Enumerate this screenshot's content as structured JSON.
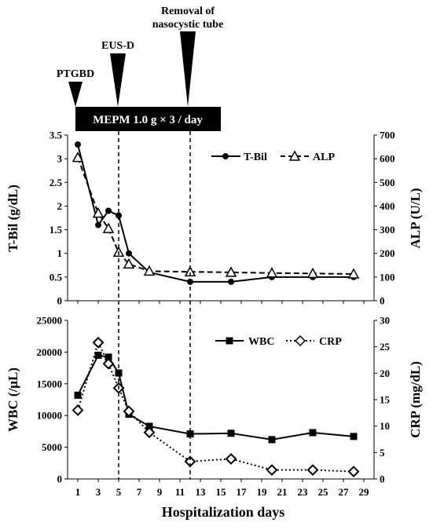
{
  "chart_data": [
    {
      "type": "line",
      "panel": "top",
      "x": [
        1,
        3,
        4,
        5,
        6,
        8,
        12,
        16,
        20,
        24,
        28
      ],
      "series": [
        {
          "name": "T-Bil",
          "axis": "left",
          "marker": "circle-filled",
          "line": "solid",
          "values": [
            3.3,
            1.6,
            1.9,
            1.8,
            1.0,
            0.6,
            0.4,
            0.4,
            0.5,
            0.5,
            0.5
          ]
        },
        {
          "name": "ALP",
          "axis": "right",
          "marker": "triangle-open",
          "line": "dashed",
          "values": [
            605,
            370,
            305,
            205,
            155,
            125,
            122,
            120,
            117,
            115,
            113
          ]
        }
      ],
      "ylabel_left": "T-Bil (g/dL)",
      "ylabel_right": "ALP (U/L)",
      "ylim_left": [
        0,
        3.5
      ],
      "ylim_right": [
        0,
        700
      ],
      "yticks_left": [
        "0",
        "0.5",
        "1",
        "1.5",
        "2",
        "2.5",
        "3",
        "3.5"
      ],
      "yticks_right": [
        "0",
        "100",
        "200",
        "300",
        "400",
        "500",
        "600",
        "700"
      ],
      "legend": "top-right",
      "grid": false
    },
    {
      "type": "line",
      "panel": "bottom",
      "x": [
        1,
        3,
        4,
        5,
        6,
        8,
        12,
        16,
        20,
        24,
        28
      ],
      "series": [
        {
          "name": "WBC",
          "axis": "left",
          "marker": "square-filled",
          "line": "solid",
          "values": [
            13200,
            19500,
            19200,
            16700,
            10200,
            8300,
            7100,
            7200,
            6200,
            7300,
            6700
          ]
        },
        {
          "name": "CRP",
          "axis": "right",
          "marker": "diamond-open",
          "line": "dotted",
          "values": [
            13,
            25.8,
            21.8,
            17.2,
            12.8,
            8.8,
            3.3,
            3.8,
            1.7,
            1.7,
            1.4
          ]
        }
      ],
      "ylabel_left": "WBC (/μL)",
      "ylabel_right": "CRP (mg/dL)",
      "ylim_left": [
        0,
        25000
      ],
      "ylim_right": [
        0,
        30
      ],
      "yticks_left": [
        "0",
        "5000",
        "10000",
        "15000",
        "20000",
        "25000"
      ],
      "yticks_right": [
        "0",
        "5",
        "10",
        "15",
        "20",
        "25",
        "30"
      ],
      "legend": "top-right",
      "grid": false
    }
  ],
  "xaxis": {
    "label": "Hospitalization days",
    "xlim": [
      0,
      30
    ],
    "ticks": [
      1,
      3,
      5,
      7,
      9,
      11,
      13,
      15,
      17,
      19,
      21,
      23,
      25,
      27,
      29
    ],
    "tick_labels": [
      "1",
      "3",
      "5",
      "7",
      "9",
      "11",
      "13",
      "15",
      "17",
      "19",
      "21",
      "23",
      "25",
      "27",
      "29"
    ]
  },
  "events": [
    {
      "label": "PTGBD",
      "day": 1
    },
    {
      "label": "EUS-D",
      "day": 5
    },
    {
      "label_lines": [
        "Removal of",
        "nasocystic tube"
      ],
      "day": 12
    }
  ],
  "treatment_bar": {
    "label": "MEPM 1.0 g × 3 / day",
    "start_day": 1,
    "end_day": 15
  },
  "dashed_day_lines": [
    5,
    12
  ],
  "colors": {
    "ink": "#000000",
    "background": "#ffffff",
    "bar_text": "#ffffff"
  }
}
